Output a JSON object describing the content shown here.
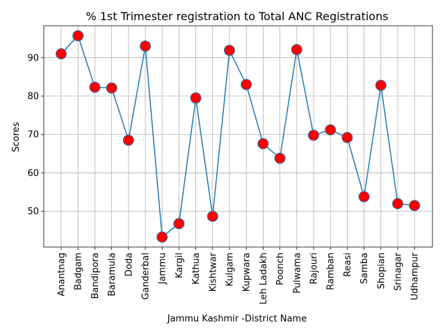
{
  "chart_data": {
    "type": "line",
    "title": "% 1st Trimester registration to Total ANC Registrations",
    "xlabel": "Jammu Kashmir -District Name",
    "ylabel": "Scores",
    "categories": [
      "Anantnag",
      "Badgam",
      "Bandipora",
      "Baramula",
      "Doda",
      "Ganderbal",
      "Jammu",
      "Kargil",
      "Kathua",
      "Kishtwar",
      "Kulgam",
      "Kupwara",
      "Leh Ladakh",
      "Poonch",
      "Pulwama",
      "Rajouri",
      "Ramban",
      "Reasi",
      "Samba",
      "Shopian",
      "Srinagar",
      "Udhampur"
    ],
    "series": [
      {
        "values": [
          91.0,
          95.7,
          82.3,
          82.1,
          68.5,
          93.0,
          43.3,
          46.8,
          79.5,
          48.7,
          91.9,
          83.0,
          67.6,
          63.8,
          92.1,
          69.8,
          71.2,
          69.2,
          53.8,
          82.8,
          52.0,
          51.5
        ]
      }
    ],
    "ylim": [
      40.7,
      98.3
    ],
    "yticks": [
      50,
      60,
      70,
      80,
      90
    ],
    "grid": true,
    "legend": "none",
    "colors": {
      "line": "#1f77b4",
      "marker_fill": "#ff0000",
      "marker_edge": "#1f77b4",
      "grid": "#b0b0b0",
      "axes": "#000000"
    }
  }
}
